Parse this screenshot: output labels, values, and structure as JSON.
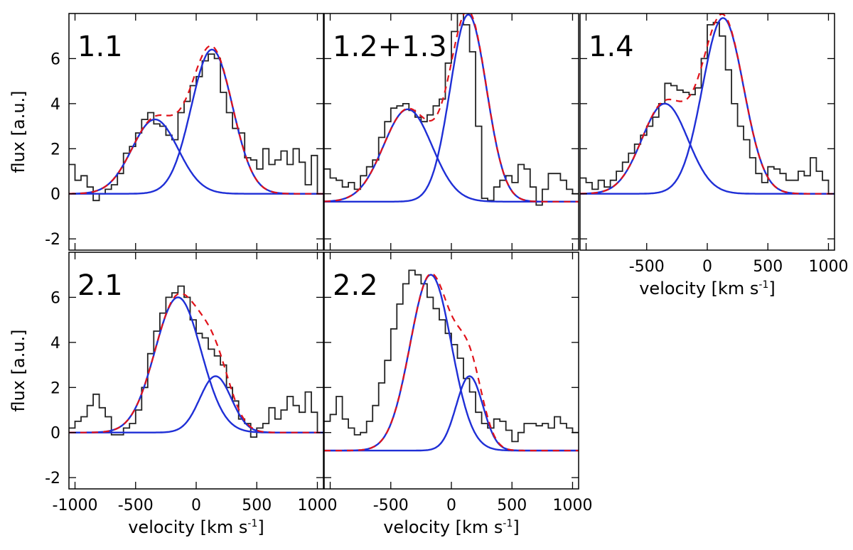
{
  "chart_data": {
    "type": "line",
    "description_units": "velocity in km s^-1, flux in arbitrary units",
    "colors": {
      "histogram": "#222222",
      "components": "#1f2fd6",
      "total_fit": "#e0121a",
      "axes": "#000000"
    },
    "x_ticks": [
      "-1000",
      "-500",
      "0",
      "500",
      "1000"
    ],
    "x_tick_values": [
      -1000,
      -500,
      0,
      500,
      1000
    ],
    "y_ticks": [
      "-2",
      "0",
      "2",
      "4",
      "6"
    ],
    "y_tick_values": [
      -2,
      0,
      2,
      4,
      6
    ],
    "xlabel": "velocity [km s",
    "xlabel_sup": "-1",
    "xlabel_end": "]",
    "ylabel": "flux [a.u.]",
    "xlim": [
      -1050,
      1050
    ],
    "ylim": [
      -2.5,
      8
    ],
    "panels": [
      {
        "id": "1.1",
        "label": "1.1",
        "row": 0,
        "col": 0,
        "show_ylabel": true,
        "show_yticks": true,
        "show_xticks": false,
        "show_xlabel": false,
        "baseline": 0.0,
        "hist_x": [
          -1050,
          -1000,
          -950,
          -900,
          -850,
          -800,
          -750,
          -700,
          -650,
          -600,
          -550,
          -500,
          -450,
          -400,
          -350,
          -300,
          -250,
          -200,
          -150,
          -100,
          -50,
          0,
          50,
          100,
          150,
          200,
          250,
          300,
          350,
          400,
          450,
          500,
          550,
          600,
          650,
          700,
          750,
          800,
          850,
          900,
          950,
          1000,
          1050
        ],
        "hist_y": [
          1.3,
          0.6,
          0.8,
          0.3,
          -0.3,
          0.0,
          0.2,
          0.4,
          0.9,
          1.8,
          2.1,
          2.7,
          3.3,
          3.6,
          3.1,
          3.0,
          2.6,
          2.4,
          3.6,
          4.1,
          4.8,
          5.2,
          5.9,
          6.2,
          6.0,
          4.5,
          3.6,
          2.9,
          2.7,
          1.6,
          1.5,
          1.1,
          2.0,
          1.3,
          1.5,
          1.9,
          1.3,
          2.0,
          1.4,
          0.4,
          1.7,
          0.0
        ],
        "components": [
          {
            "amp": 3.3,
            "center": -340,
            "sigma": 190
          },
          {
            "amp": 6.4,
            "center": 130,
            "sigma": 170
          }
        ]
      },
      {
        "id": "1.2+1.3",
        "label": "1.2+1.3",
        "row": 0,
        "col": 1,
        "show_ylabel": false,
        "show_yticks": false,
        "show_xticks": false,
        "show_xlabel": false,
        "baseline": -0.35,
        "hist_x": [
          -1050,
          -1000,
          -950,
          -900,
          -850,
          -800,
          -750,
          -700,
          -650,
          -600,
          -550,
          -500,
          -450,
          -400,
          -350,
          -300,
          -250,
          -200,
          -150,
          -100,
          -50,
          0,
          50,
          100,
          150,
          200,
          250,
          300,
          350,
          400,
          450,
          500,
          550,
          600,
          650,
          700,
          750,
          800,
          850,
          900,
          950,
          1000,
          1050
        ],
        "hist_y": [
          1.1,
          0.7,
          0.6,
          0.3,
          0.5,
          0.2,
          0.8,
          1.2,
          1.5,
          2.5,
          3.2,
          3.8,
          3.9,
          4.0,
          3.7,
          3.4,
          3.2,
          3.5,
          3.9,
          4.2,
          5.8,
          7.2,
          8.0,
          7.5,
          6.3,
          3.0,
          -0.2,
          -0.3,
          0.3,
          0.6,
          0.8,
          0.5,
          1.3,
          1.1,
          0.3,
          -0.5,
          0.2,
          0.9,
          0.9,
          0.6,
          0.2,
          0.0
        ],
        "components": [
          {
            "amp": 4.1,
            "center": -360,
            "sigma": 200
          },
          {
            "amp": 8.3,
            "center": 140,
            "sigma": 150
          }
        ]
      },
      {
        "id": "1.4",
        "label": "1.4",
        "row": 0,
        "col": 2,
        "show_ylabel": false,
        "show_yticks": false,
        "show_xticks": true,
        "show_xlabel": true,
        "baseline": 0.0,
        "hist_x": [
          -1050,
          -1000,
          -950,
          -900,
          -850,
          -800,
          -750,
          -700,
          -650,
          -600,
          -550,
          -500,
          -450,
          -400,
          -350,
          -300,
          -250,
          -200,
          -150,
          -100,
          -50,
          0,
          50,
          100,
          150,
          200,
          250,
          300,
          350,
          400,
          450,
          500,
          550,
          600,
          650,
          700,
          750,
          800,
          850,
          900,
          950,
          1000,
          1050
        ],
        "hist_y": [
          0.7,
          0.5,
          0.2,
          0.6,
          0.3,
          0.6,
          1.0,
          1.4,
          1.8,
          2.2,
          2.6,
          3.0,
          3.4,
          4.0,
          4.9,
          4.8,
          4.6,
          4.5,
          4.4,
          4.7,
          6.0,
          7.5,
          7.6,
          7.0,
          5.5,
          4.0,
          3.0,
          2.4,
          1.6,
          0.9,
          0.5,
          1.2,
          1.1,
          0.9,
          0.6,
          0.6,
          1.0,
          0.8,
          1.6,
          1.0,
          0.6,
          0.0
        ],
        "components": [
          {
            "amp": 4.0,
            "center": -350,
            "sigma": 190
          },
          {
            "amp": 7.8,
            "center": 130,
            "sigma": 170
          }
        ]
      },
      {
        "id": "2.1",
        "label": "2.1",
        "row": 1,
        "col": 0,
        "show_ylabel": true,
        "show_yticks": true,
        "show_xticks": true,
        "show_xlabel": true,
        "baseline": 0.0,
        "hist_x": [
          -1050,
          -1000,
          -950,
          -900,
          -850,
          -800,
          -750,
          -700,
          -650,
          -600,
          -550,
          -500,
          -450,
          -400,
          -350,
          -300,
          -250,
          -200,
          -150,
          -100,
          -50,
          0,
          50,
          100,
          150,
          200,
          250,
          300,
          350,
          400,
          450,
          500,
          550,
          600,
          650,
          700,
          750,
          800,
          850,
          900,
          950,
          1000,
          1050
        ],
        "hist_y": [
          0.2,
          0.5,
          0.7,
          1.2,
          1.7,
          1.1,
          0.7,
          -0.1,
          -0.1,
          0.2,
          0.4,
          1.0,
          2.0,
          3.5,
          4.5,
          5.3,
          6.0,
          6.2,
          6.5,
          6.0,
          5.0,
          4.4,
          4.2,
          3.7,
          3.4,
          3.0,
          2.0,
          1.4,
          0.6,
          0.4,
          -0.2,
          0.2,
          0.4,
          1.1,
          0.6,
          1.0,
          1.6,
          1.2,
          0.9,
          1.8,
          0.9,
          0.0
        ],
        "components": [
          {
            "amp": 6.0,
            "center": -150,
            "sigma": 190
          },
          {
            "amp": 2.5,
            "center": 160,
            "sigma": 130
          }
        ]
      },
      {
        "id": "2.2",
        "label": "2.2",
        "row": 1,
        "col": 1,
        "show_ylabel": false,
        "show_yticks": false,
        "show_xticks": true,
        "show_xlabel": true,
        "baseline": -0.8,
        "hist_x": [
          -1050,
          -1000,
          -950,
          -900,
          -850,
          -800,
          -750,
          -700,
          -650,
          -600,
          -550,
          -500,
          -450,
          -400,
          -350,
          -300,
          -250,
          -200,
          -150,
          -100,
          -50,
          0,
          50,
          100,
          150,
          200,
          250,
          300,
          350,
          400,
          450,
          500,
          550,
          600,
          650,
          700,
          750,
          800,
          850,
          900,
          950,
          1000,
          1050
        ],
        "hist_y": [
          0.5,
          0.8,
          1.6,
          0.6,
          0.2,
          -0.1,
          0.0,
          0.5,
          1.2,
          2.2,
          3.2,
          4.6,
          5.7,
          6.6,
          7.2,
          7.0,
          6.6,
          6.0,
          5.5,
          5.0,
          4.4,
          3.9,
          3.3,
          2.4,
          1.8,
          0.9,
          0.4,
          0.2,
          0.6,
          0.5,
          0.1,
          -0.4,
          0.0,
          0.4,
          0.4,
          0.3,
          0.4,
          0.2,
          0.7,
          0.4,
          0.2,
          0.0
        ],
        "components": [
          {
            "amp": 7.8,
            "center": -170,
            "sigma": 170
          },
          {
            "amp": 3.3,
            "center": 150,
            "sigma": 110
          }
        ]
      }
    ]
  }
}
